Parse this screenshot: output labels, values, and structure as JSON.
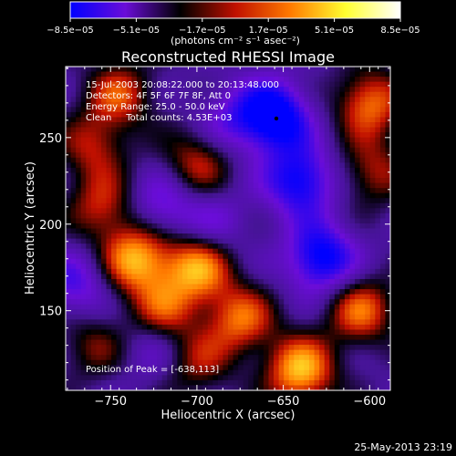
{
  "chart_data": {
    "type": "heatmap",
    "title": "Reconstructed RHESSI Image",
    "xlabel": "Heliocentric X (arcsec)",
    "ylabel": "Heliocentric Y (arcsec)",
    "xlim": [
      -776,
      -588
    ],
    "ylim": [
      104,
      291
    ],
    "x_ticks": [
      -750,
      -700,
      -650,
      -600
    ],
    "y_ticks": [
      150,
      200,
      250
    ],
    "x_tick_labels": [
      "−750",
      "−700",
      "−650",
      "−600"
    ],
    "y_tick_labels": [
      "150",
      "200",
      "250"
    ],
    "colorbar": {
      "min": -8.5e-05,
      "max": 8.5e-05,
      "tick_values": [
        -8.5e-05,
        -5.1e-05,
        -1.7e-05,
        1.7e-05,
        5.1e-05,
        8.5e-05
      ],
      "tick_labels": [
        "−8.5e−05",
        "−5.1e−05",
        "−1.7e−05",
        "1.7e−05",
        "5.1e−05",
        "8.5e−05"
      ],
      "unit_label": "(photons cm⁻² s⁻¹ asec⁻²)",
      "colors": [
        "#0000ff",
        "#6a0dd8",
        "#000000",
        "#c01000",
        "#ff7a00",
        "#ffff30",
        "#ffffff"
      ]
    },
    "annotations": [
      "15-Jul-2003 20:08:22.000 to 20:13:48.000",
      "Detectors: 4F 5F 6F 7F 8F, Att 0",
      "Energy Range: 25.0 - 50.0 keV",
      "Clean     Total counts: 4.53E+03"
    ],
    "peak_label": "Position of Peak = [-638,113]",
    "peak_position": [
      -638,
      113
    ],
    "marker_position": [
      -654,
      261
    ],
    "blobs": [
      {
        "x": -755,
        "y": 210,
        "v": 0.55
      },
      {
        "x": -735,
        "y": 180,
        "v": 0.9
      },
      {
        "x": -700,
        "y": 175,
        "v": 0.85
      },
      {
        "x": -720,
        "y": 150,
        "v": 0.6
      },
      {
        "x": -700,
        "y": 235,
        "v": 0.55
      },
      {
        "x": -760,
        "y": 245,
        "v": 0.5
      },
      {
        "x": -745,
        "y": 275,
        "v": 0.6
      },
      {
        "x": -600,
        "y": 270,
        "v": 0.75
      },
      {
        "x": -598,
        "y": 230,
        "v": 0.5
      },
      {
        "x": -605,
        "y": 150,
        "v": 0.7
      },
      {
        "x": -640,
        "y": 115,
        "v": 0.95
      },
      {
        "x": -675,
        "y": 145,
        "v": 0.7
      },
      {
        "x": -760,
        "y": 130,
        "v": 0.4
      },
      {
        "x": -700,
        "y": 120,
        "v": 0.45
      },
      {
        "x": -725,
        "y": 130,
        "v": -0.3
      },
      {
        "x": -655,
        "y": 262,
        "v": -0.9
      },
      {
        "x": -640,
        "y": 225,
        "v": -0.75
      },
      {
        "x": -628,
        "y": 180,
        "v": -0.8
      },
      {
        "x": -720,
        "y": 210,
        "v": -0.45
      },
      {
        "x": -680,
        "y": 260,
        "v": -0.35
      },
      {
        "x": -770,
        "y": 165,
        "v": -0.45
      },
      {
        "x": -690,
        "y": 200,
        "v": -0.3
      }
    ]
  },
  "footer": {
    "timestamp": "25-May-2013 23:19"
  }
}
